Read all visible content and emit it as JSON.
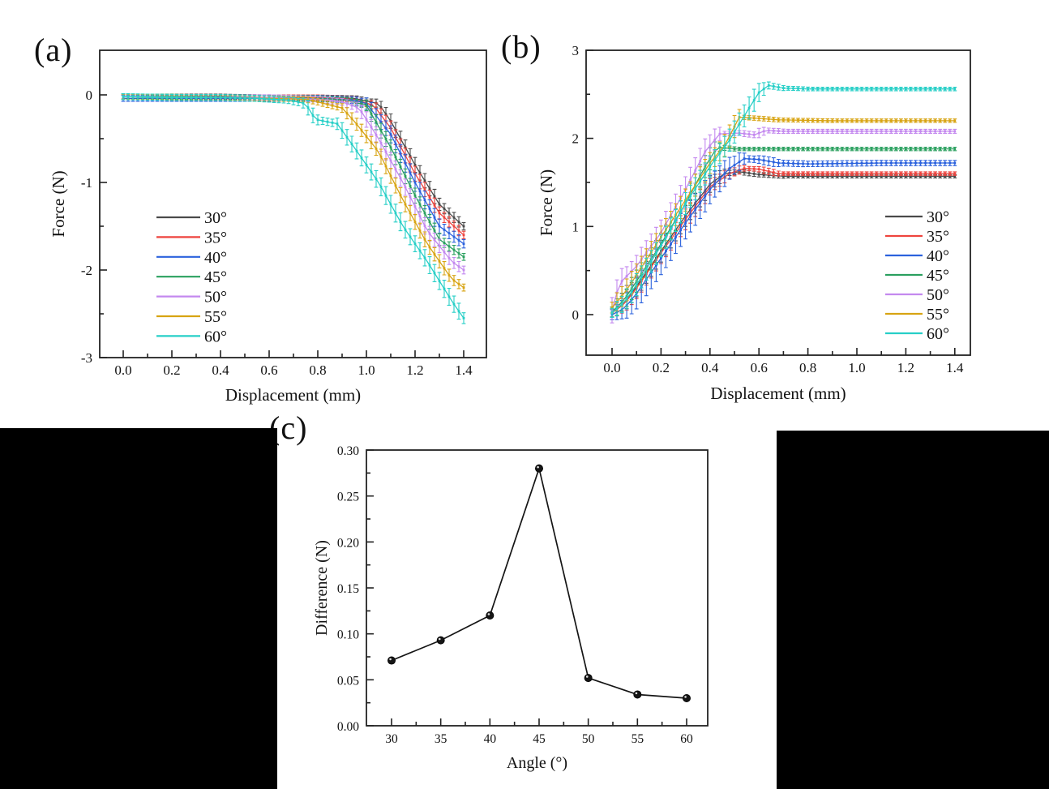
{
  "figure": {
    "background": "#ffffff",
    "panel_labels": {
      "a": "(a)",
      "b": "(b)",
      "c": "(c)"
    }
  },
  "chart_data": [
    {
      "id": "a",
      "type": "line",
      "title": "",
      "xlabel": "Displacement (mm)",
      "ylabel": "Force (N)",
      "xlim": [
        -0.1,
        1.49
      ],
      "ylim": [
        -3,
        0.51
      ],
      "grid": false,
      "legend_position": "center-left-inside",
      "x_major_ticks": [
        0.0,
        0.2,
        0.4,
        0.6,
        0.8,
        1.0,
        1.2,
        1.4
      ],
      "x_tick_labels": [
        "0.0",
        "0.2",
        "0.4",
        "0.6",
        "0.8",
        "1.0",
        "1.2",
        "1.4"
      ],
      "x_minor_ticks": [
        0.1,
        0.3,
        0.5,
        0.7,
        0.9,
        1.1,
        1.3
      ],
      "y_major_ticks": [
        0,
        -1,
        -2,
        -3
      ],
      "y_tick_labels": [
        "0",
        "-1",
        "-2",
        "-3"
      ],
      "y_minor_ticks": [
        -0.5,
        -1.5,
        -2.5
      ],
      "marker": "square",
      "err_model": {
        "base": 0.028,
        "slope_k": 0.012,
        "cap": 0.085
      },
      "series": [
        {
          "name": "30°",
          "color": "#4a4a4a",
          "err_scale": 1.0,
          "points": [
            [
              0,
              -0.02
            ],
            [
              0.2,
              -0.02
            ],
            [
              0.4,
              -0.02
            ],
            [
              0.6,
              -0.03
            ],
            [
              0.8,
              -0.03
            ],
            [
              0.95,
              -0.04
            ],
            [
              1.05,
              -0.1
            ],
            [
              1.1,
              -0.3
            ],
            [
              1.2,
              -0.8
            ],
            [
              1.3,
              -1.25
            ],
            [
              1.4,
              -1.5
            ]
          ]
        },
        {
          "name": "35°",
          "color": "#ee443e",
          "err_scale": 1.0,
          "points": [
            [
              0,
              -0.02
            ],
            [
              0.2,
              -0.02
            ],
            [
              0.4,
              -0.03
            ],
            [
              0.6,
              -0.03
            ],
            [
              0.8,
              -0.03
            ],
            [
              0.95,
              -0.05
            ],
            [
              1.03,
              -0.12
            ],
            [
              1.1,
              -0.38
            ],
            [
              1.2,
              -0.9
            ],
            [
              1.3,
              -1.35
            ],
            [
              1.4,
              -1.6
            ]
          ]
        },
        {
          "name": "40°",
          "color": "#2b62dd",
          "err_scale": 1.2,
          "points": [
            [
              0,
              -0.04
            ],
            [
              0.2,
              -0.04
            ],
            [
              0.4,
              -0.04
            ],
            [
              0.6,
              -0.04
            ],
            [
              0.8,
              -0.04
            ],
            [
              0.95,
              -0.06
            ],
            [
              1.0,
              -0.1
            ],
            [
              1.1,
              -0.45
            ],
            [
              1.2,
              -1.0
            ],
            [
              1.3,
              -1.5
            ],
            [
              1.4,
              -1.7
            ]
          ]
        },
        {
          "name": "45°",
          "color": "#2aa05f",
          "err_scale": 1.0,
          "points": [
            [
              0,
              -0.02
            ],
            [
              0.2,
              -0.02
            ],
            [
              0.4,
              -0.03
            ],
            [
              0.6,
              -0.03
            ],
            [
              0.8,
              -0.04
            ],
            [
              0.92,
              -0.06
            ],
            [
              1.0,
              -0.12
            ],
            [
              1.1,
              -0.6
            ],
            [
              1.2,
              -1.15
            ],
            [
              1.3,
              -1.65
            ],
            [
              1.4,
              -1.85
            ]
          ]
        },
        {
          "name": "50°",
          "color": "#c489ef",
          "err_scale": 1.1,
          "points": [
            [
              0,
              -0.02
            ],
            [
              0.2,
              -0.03
            ],
            [
              0.4,
              -0.03
            ],
            [
              0.6,
              -0.03
            ],
            [
              0.8,
              -0.05
            ],
            [
              0.9,
              -0.08
            ],
            [
              0.97,
              -0.15
            ],
            [
              1.05,
              -0.5
            ],
            [
              1.15,
              -1.0
            ],
            [
              1.25,
              -1.55
            ],
            [
              1.35,
              -1.9
            ],
            [
              1.4,
              -2.0
            ]
          ]
        },
        {
          "name": "55°",
          "color": "#d8a413",
          "err_scale": 1.0,
          "points": [
            [
              0,
              -0.02
            ],
            [
              0.2,
              -0.03
            ],
            [
              0.4,
              -0.03
            ],
            [
              0.6,
              -0.04
            ],
            [
              0.75,
              -0.05
            ],
            [
              0.8,
              -0.08
            ],
            [
              0.9,
              -0.15
            ],
            [
              0.95,
              -0.3
            ],
            [
              1.05,
              -0.65
            ],
            [
              1.15,
              -1.2
            ],
            [
              1.25,
              -1.7
            ],
            [
              1.35,
              -2.1
            ],
            [
              1.4,
              -2.2
            ]
          ]
        },
        {
          "name": "60°",
          "color": "#27cfc7",
          "err_scale": 1.2,
          "points": [
            [
              0,
              -0.02
            ],
            [
              0.2,
              -0.03
            ],
            [
              0.4,
              -0.03
            ],
            [
              0.55,
              -0.04
            ],
            [
              0.68,
              -0.06
            ],
            [
              0.75,
              -0.1
            ],
            [
              0.79,
              -0.28
            ],
            [
              0.88,
              -0.33
            ],
            [
              0.95,
              -0.6
            ],
            [
              1.05,
              -1.0
            ],
            [
              1.15,
              -1.5
            ],
            [
              1.25,
              -1.9
            ],
            [
              1.35,
              -2.35
            ],
            [
              1.4,
              -2.55
            ]
          ]
        }
      ]
    },
    {
      "id": "b",
      "type": "line",
      "title": "",
      "xlabel": "Displacement (mm)",
      "ylabel": "Force (N)",
      "xlim": [
        -0.11,
        1.46
      ],
      "ylim": [
        -0.46,
        3
      ],
      "grid": false,
      "legend_position": "lower-right-inside",
      "x_major_ticks": [
        0.0,
        0.2,
        0.4,
        0.6,
        0.8,
        1.0,
        1.2,
        1.4
      ],
      "x_tick_labels": [
        "0.0",
        "0.2",
        "0.4",
        "0.6",
        "0.8",
        "1.0",
        "1.2",
        "1.4"
      ],
      "x_minor_ticks": [
        0.1,
        0.3,
        0.5,
        0.7,
        0.9,
        1.1,
        1.3
      ],
      "y_major_ticks": [
        0,
        1,
        2,
        3
      ],
      "y_tick_labels": [
        "0",
        "1",
        "2",
        "3"
      ],
      "y_minor_ticks": [
        0.5,
        1.5,
        2.5
      ],
      "marker": "square",
      "err_model": {
        "base": 0.02,
        "slope_k": 0.026,
        "cap": 0.125
      },
      "series": [
        {
          "name": "30°",
          "color": "#4a4a4a",
          "err_scale": 1.0,
          "points": [
            [
              0,
              0.02
            ],
            [
              0.05,
              0.14
            ],
            [
              0.1,
              0.32
            ],
            [
              0.2,
              0.72
            ],
            [
              0.3,
              1.12
            ],
            [
              0.4,
              1.48
            ],
            [
              0.46,
              1.6
            ],
            [
              0.52,
              1.62
            ],
            [
              0.6,
              1.59
            ],
            [
              0.7,
              1.57
            ],
            [
              0.9,
              1.57
            ],
            [
              1.1,
              1.57
            ],
            [
              1.4,
              1.57
            ]
          ]
        },
        {
          "name": "35°",
          "color": "#ee443e",
          "err_scale": 1.0,
          "points": [
            [
              0,
              0.02
            ],
            [
              0.05,
              0.12
            ],
            [
              0.1,
              0.3
            ],
            [
              0.2,
              0.7
            ],
            [
              0.3,
              1.08
            ],
            [
              0.4,
              1.45
            ],
            [
              0.48,
              1.6
            ],
            [
              0.54,
              1.66
            ],
            [
              0.6,
              1.65
            ],
            [
              0.68,
              1.6
            ],
            [
              0.8,
              1.6
            ],
            [
              1.1,
              1.6
            ],
            [
              1.4,
              1.6
            ]
          ]
        },
        {
          "name": "40°",
          "color": "#2b62dd",
          "err_scale": 1.5,
          "points": [
            [
              0,
              0.0
            ],
            [
              0.05,
              0.07
            ],
            [
              0.1,
              0.24
            ],
            [
              0.2,
              0.64
            ],
            [
              0.3,
              1.04
            ],
            [
              0.4,
              1.42
            ],
            [
              0.48,
              1.66
            ],
            [
              0.54,
              1.77
            ],
            [
              0.6,
              1.76
            ],
            [
              0.68,
              1.72
            ],
            [
              0.8,
              1.71
            ],
            [
              1.1,
              1.72
            ],
            [
              1.4,
              1.72
            ]
          ]
        },
        {
          "name": "45°",
          "color": "#2aa05f",
          "err_scale": 1.0,
          "points": [
            [
              0,
              0.03
            ],
            [
              0.05,
              0.17
            ],
            [
              0.1,
              0.38
            ],
            [
              0.2,
              0.8
            ],
            [
              0.3,
              1.26
            ],
            [
              0.38,
              1.68
            ],
            [
              0.43,
              1.9
            ],
            [
              0.5,
              1.88
            ],
            [
              0.6,
              1.88
            ],
            [
              0.8,
              1.88
            ],
            [
              1.1,
              1.88
            ],
            [
              1.4,
              1.88
            ]
          ]
        },
        {
          "name": "50°",
          "color": "#c489ef",
          "err_scale": 1.15,
          "points": [
            [
              0,
              0.05
            ],
            [
              0.03,
              0.35
            ],
            [
              0.1,
              0.55
            ],
            [
              0.2,
              0.93
            ],
            [
              0.3,
              1.42
            ],
            [
              0.38,
              1.85
            ],
            [
              0.44,
              2.05
            ],
            [
              0.52,
              2.06
            ],
            [
              0.58,
              2.04
            ],
            [
              0.63,
              2.09
            ],
            [
              0.7,
              2.08
            ],
            [
              0.9,
              2.08
            ],
            [
              1.2,
              2.08
            ],
            [
              1.4,
              2.08
            ]
          ]
        },
        {
          "name": "55°",
          "color": "#d8a413",
          "err_scale": 1.0,
          "points": [
            [
              0,
              0.08
            ],
            [
              0.05,
              0.24
            ],
            [
              0.1,
              0.45
            ],
            [
              0.2,
              0.88
            ],
            [
              0.3,
              1.3
            ],
            [
              0.4,
              1.72
            ],
            [
              0.46,
              1.92
            ],
            [
              0.52,
              2.24
            ],
            [
              0.58,
              2.23
            ],
            [
              0.68,
              2.21
            ],
            [
              0.9,
              2.2
            ],
            [
              1.2,
              2.2
            ],
            [
              1.4,
              2.2
            ]
          ]
        },
        {
          "name": "60°",
          "color": "#27cfc7",
          "err_scale": 1.0,
          "points": [
            [
              0,
              0.02
            ],
            [
              0.05,
              0.14
            ],
            [
              0.1,
              0.34
            ],
            [
              0.2,
              0.78
            ],
            [
              0.3,
              1.26
            ],
            [
              0.4,
              1.68
            ],
            [
              0.48,
              1.98
            ],
            [
              0.55,
              2.3
            ],
            [
              0.6,
              2.52
            ],
            [
              0.64,
              2.6
            ],
            [
              0.7,
              2.57
            ],
            [
              0.8,
              2.56
            ],
            [
              1.0,
              2.56
            ],
            [
              1.2,
              2.56
            ],
            [
              1.4,
              2.56
            ]
          ]
        }
      ]
    },
    {
      "id": "c",
      "type": "line",
      "title": "",
      "xlabel": "Angle (°)",
      "ylabel": "Difference (N)",
      "xlim": [
        27.5,
        62.5
      ],
      "ylim": [
        0,
        0.3
      ],
      "grid": false,
      "legend_position": "none",
      "x_major_ticks": [
        30,
        35,
        40,
        45,
        50,
        55,
        60
      ],
      "x_tick_labels": [
        "30",
        "35",
        "40",
        "45",
        "50",
        "55",
        "60"
      ],
      "x_minor_ticks": [
        32.5,
        37.5,
        42.5,
        47.5,
        52.5,
        57.5
      ],
      "y_major_ticks": [
        0,
        0.05,
        0.1,
        0.15,
        0.2,
        0.25,
        0.3
      ],
      "y_tick_labels": [
        "0.00",
        "0.05",
        "0.10",
        "0.15",
        "0.20",
        "0.25",
        "0.30"
      ],
      "y_minor_ticks": [
        0.025,
        0.075,
        0.125,
        0.175,
        0.225,
        0.275
      ],
      "marker": "circle",
      "series": [
        {
          "name": "Difference",
          "color": "#151515",
          "points": [
            [
              30,
              0.071
            ],
            [
              35,
              0.093
            ],
            [
              40,
              0.12
            ],
            [
              45,
              0.28
            ],
            [
              50,
              0.052
            ],
            [
              55,
              0.034
            ],
            [
              60,
              0.03
            ]
          ]
        }
      ]
    }
  ]
}
